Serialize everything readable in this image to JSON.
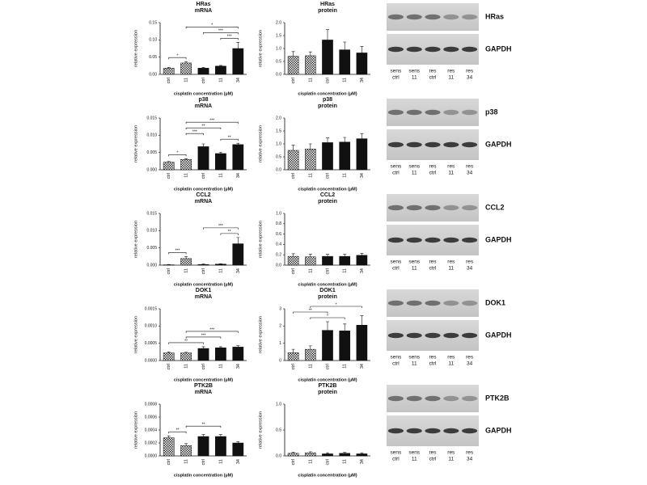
{
  "chart_data": [
    {
      "type": "bar",
      "title": "HRas",
      "subtitle": "mRNA",
      "ylabel": "relative expression",
      "xlabel": "cisplatin concentration (µM)",
      "categories": [
        "ctrl",
        "11",
        "ctrl",
        "11",
        "34"
      ],
      "fills": [
        "checker",
        "checker",
        "black",
        "black",
        "black"
      ],
      "values": [
        0.018,
        0.033,
        0.018,
        0.024,
        0.075
      ],
      "errors": [
        0.002,
        0.004,
        0.002,
        0.002,
        0.018
      ],
      "ylim": [
        0,
        0.15
      ],
      "yticks": [
        {
          "value": 0,
          "label": "0.00"
        },
        {
          "value": 0.05,
          "label": "0.05"
        },
        {
          "value": 0.1,
          "label": "0.10"
        },
        {
          "value": 0.15,
          "label": "0.15"
        }
      ],
      "brackets": [
        {
          "label": "*",
          "span": [
            0,
            1
          ]
        },
        {
          "label": "***",
          "span": [
            3,
            4
          ]
        },
        {
          "label": "***",
          "span": [
            2,
            4
          ]
        },
        {
          "label": "*",
          "span": [
            1,
            4
          ]
        }
      ]
    },
    {
      "type": "bar",
      "title": "HRas",
      "subtitle": "protein",
      "ylabel": "relative expression",
      "xlabel": "cisplatin concentration (µM)",
      "categories": [
        "ctrl",
        "11",
        "ctrl",
        "11",
        "34"
      ],
      "fills": [
        "checker",
        "checker",
        "black",
        "black",
        "black"
      ],
      "values": [
        0.7,
        0.72,
        1.33,
        0.95,
        0.83
      ],
      "errors": [
        0.18,
        0.15,
        0.4,
        0.3,
        0.25
      ],
      "ylim": [
        0,
        2
      ],
      "yticks": [
        {
          "value": 0,
          "label": "0.0"
        },
        0.5,
        {
          "value": 1,
          "label": "1.0"
        },
        1.5,
        {
          "value": 2,
          "label": "2.0"
        }
      ],
      "brackets": []
    },
    {
      "type": "bar",
      "title": "p38",
      "subtitle": "mRNA",
      "ylabel": "relative expression",
      "xlabel": "cisplatin concentration (µM)",
      "categories": [
        "ctrl",
        "11",
        "ctrl",
        "11",
        "34"
      ],
      "fills": [
        "checker",
        "checker",
        "black",
        "black",
        "black"
      ],
      "values": [
        0.0022,
        0.003,
        0.0067,
        0.0047,
        0.0073
      ],
      "errors": [
        0.0002,
        0.0002,
        0.0008,
        0.0004,
        0.0004
      ],
      "ylim": [
        0,
        0.015
      ],
      "yticks": [
        {
          "value": 0,
          "label": "0.000"
        },
        0.005,
        {
          "value": 0.01,
          "label": "0.010"
        },
        0.015
      ],
      "brackets": [
        {
          "label": "*",
          "span": [
            0,
            1
          ]
        },
        {
          "label": "**",
          "span": [
            3,
            4
          ]
        },
        {
          "label": "***",
          "span": [
            1,
            2
          ]
        },
        {
          "label": "**",
          "span": [
            1,
            3
          ]
        },
        {
          "label": "***",
          "span": [
            1,
            4
          ]
        }
      ]
    },
    {
      "type": "bar",
      "title": "p38",
      "subtitle": "protein",
      "ylabel": "relative expression",
      "xlabel": "cisplatin concentration (µM)",
      "categories": [
        "ctrl",
        "11",
        "ctrl",
        "11",
        "34"
      ],
      "fills": [
        "checker",
        "checker",
        "black",
        "black",
        "black"
      ],
      "values": [
        0.75,
        0.8,
        1.05,
        1.07,
        1.2
      ],
      "errors": [
        0.2,
        0.2,
        0.18,
        0.18,
        0.2
      ],
      "ylim": [
        0,
        2
      ],
      "yticks": [
        {
          "value": 0,
          "label": "0.0"
        },
        0.5,
        {
          "value": 1,
          "label": "1.0"
        },
        1.5,
        {
          "value": 2,
          "label": "2.0"
        }
      ],
      "brackets": []
    },
    {
      "type": "bar",
      "title": "CCL2",
      "subtitle": "mRNA",
      "ylabel": "relative expression",
      "xlabel": "cisplatin concentration (µM)",
      "categories": [
        "ctrl",
        "11",
        "ctrl",
        "11",
        "34"
      ],
      "fills": [
        "checker",
        "checker",
        "black",
        "black",
        "black"
      ],
      "values": [
        0.0001,
        0.0019,
        0.0002,
        0.0003,
        0.0062
      ],
      "errors": [
        0.0001,
        0.0006,
        0.0001,
        0.0001,
        0.0018
      ],
      "ylim": [
        0,
        0.015
      ],
      "yticks": [
        {
          "value": 0,
          "label": "0.000"
        },
        0.005,
        {
          "value": 0.01,
          "label": "0.010"
        },
        0.015
      ],
      "brackets": [
        {
          "label": "***",
          "span": [
            0,
            1
          ]
        },
        {
          "label": "**",
          "span": [
            3,
            4
          ]
        },
        {
          "label": "***",
          "span": [
            2,
            4
          ]
        }
      ]
    },
    {
      "type": "bar",
      "title": "CCL2",
      "subtitle": "protein",
      "ylabel": "relative expression",
      "xlabel": "cisplatin concentration (µM)",
      "categories": [
        "ctrl",
        "11",
        "ctrl",
        "11",
        "34"
      ],
      "fills": [
        "checker",
        "checker",
        "black",
        "black",
        "black"
      ],
      "values": [
        0.17,
        0.16,
        0.17,
        0.17,
        0.19
      ],
      "errors": [
        0.05,
        0.05,
        0.04,
        0.04,
        0.04
      ],
      "ylim": [
        0,
        1
      ],
      "yticks": [
        {
          "value": 0,
          "label": "0.0"
        },
        0.2,
        0.4,
        0.6,
        0.8,
        {
          "value": 1,
          "label": "1.0"
        }
      ],
      "brackets": []
    },
    {
      "type": "bar",
      "title": "DOK1",
      "subtitle": "mRNA",
      "ylabel": "relative expression",
      "xlabel": "cisplatin concentration (µM)",
      "categories": [
        "ctrl",
        "11",
        "ctrl",
        "11",
        "34"
      ],
      "fills": [
        "checker",
        "checker",
        "black",
        "black",
        "black"
      ],
      "values": [
        0.00022,
        0.00022,
        0.00035,
        0.00037,
        0.00039
      ],
      "errors": [
        3e-05,
        2e-05,
        5e-05,
        3e-05,
        4e-05
      ],
      "ylim": [
        0,
        0.0015
      ],
      "yticks": [
        {
          "value": 0,
          "label": "0.0000"
        },
        0.0005,
        {
          "value": 0.001,
          "label": "0.0010"
        },
        0.0015
      ],
      "brackets": [
        {
          "label": "**",
          "span": [
            0,
            2
          ]
        },
        {
          "label": "***",
          "span": [
            1,
            3
          ]
        },
        {
          "label": "***",
          "span": [
            1,
            4
          ]
        }
      ]
    },
    {
      "type": "bar",
      "title": "DOK1",
      "subtitle": "protein",
      "ylabel": "relative expression",
      "xlabel": "cisplatin concentration (µM)",
      "categories": [
        "ctrl",
        "11",
        "ctrl",
        "11",
        "34"
      ],
      "fills": [
        "checker",
        "checker",
        "black",
        "black",
        "black"
      ],
      "values": [
        0.45,
        0.65,
        1.75,
        1.72,
        2.05
      ],
      "errors": [
        0.2,
        0.2,
        0.5,
        0.4,
        0.55
      ],
      "ylim": [
        0,
        3
      ],
      "yticks": [
        0,
        1,
        2,
        3
      ],
      "brackets": [
        {
          "label": "*",
          "span": [
            1,
            3
          ]
        },
        {
          "label": "**",
          "span": [
            0,
            2
          ]
        },
        {
          "label": "*",
          "span": [
            1,
            4
          ]
        }
      ]
    },
    {
      "type": "bar",
      "title": "PTK2B",
      "subtitle": "mRNA",
      "ylabel": "relative expression",
      "xlabel": "cisplatin concentration (µM)",
      "categories": [
        "ctrl",
        "11",
        "ctrl",
        "11",
        "34"
      ],
      "fills": [
        "checker",
        "checker",
        "black",
        "black",
        "black"
      ],
      "values": [
        0.00028,
        0.00016,
        0.0003,
        0.0003,
        0.0002
      ],
      "errors": [
        3e-05,
        3e-05,
        3e-05,
        3e-05,
        2e-05
      ],
      "ylim": [
        0,
        0.0008
      ],
      "yticks": [
        {
          "value": 0,
          "label": "0.0000"
        },
        0.0002,
        0.0004,
        0.0006,
        0.0008
      ],
      "brackets": [
        {
          "label": "**",
          "span": [
            0,
            1
          ]
        },
        {
          "label": "**",
          "span": [
            1,
            3
          ]
        }
      ]
    },
    {
      "type": "bar",
      "title": "PTK2B",
      "subtitle": "protein",
      "ylabel": "relative expression",
      "xlabel": "cisplatin concentration (µM)",
      "categories": [
        "ctrl",
        "11",
        "ctrl",
        "11",
        "34"
      ],
      "fills": [
        "checker",
        "checker",
        "black",
        "black",
        "black"
      ],
      "values": [
        0.05,
        0.06,
        0.04,
        0.05,
        0.04
      ],
      "errors": [
        0.02,
        0.02,
        0.02,
        0.02,
        0.02
      ],
      "ylim": [
        0,
        1
      ],
      "yticks": [
        {
          "value": 0,
          "label": "0.0"
        },
        0.5,
        {
          "value": 1,
          "label": "1.0"
        }
      ],
      "brackets": []
    }
  ],
  "blots": [
    {
      "target": "HRas",
      "control": "GAPDH"
    },
    {
      "target": "p38",
      "control": "GAPDH"
    },
    {
      "target": "CCL2",
      "control": "GAPDH"
    },
    {
      "target": "DOK1",
      "control": "GAPDH"
    },
    {
      "target": "PTK2B",
      "control": "GAPDH"
    }
  ],
  "lanes": {
    "top": [
      "sens",
      "sens",
      "res",
      "res",
      "res"
    ],
    "bottom": [
      "ctrl",
      "11",
      "ctrl",
      "11",
      "34"
    ]
  }
}
